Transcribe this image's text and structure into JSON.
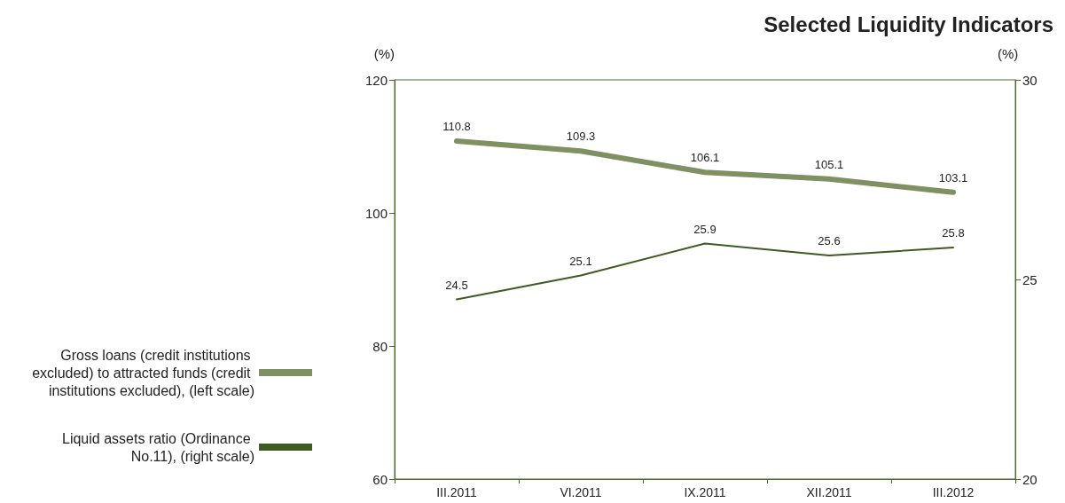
{
  "chart_data": {
    "type": "line",
    "title": "Selected Liquidity Indicators",
    "ylabel": "(%)",
    "y2label": "(%)",
    "categories": [
      "III.2011",
      "VI.2011",
      "IX.2011",
      "XII.2011",
      "III.2012"
    ],
    "series": [
      {
        "name": "Gross loans (credit institutions excluded) to attracted funds (credit institutions excluded), (left scale)",
        "color": "#7f9162",
        "values": [
          110.8,
          109.3,
          106.1,
          105.1,
          103.1
        ]
      },
      {
        "name": "Liquid assets ratio (Ordinance No.11), (right scale)",
        "color": "#3f5a22",
        "values": [
          24.5,
          25.1,
          25.9,
          25.6,
          25.8
        ],
        "axis": "y2"
      }
    ],
    "ylim": [
      60,
      120
    ],
    "yticks": [
      60,
      80,
      100,
      120
    ],
    "y2lim": [
      20,
      30
    ],
    "y2ticks": [
      20,
      25,
      30
    ],
    "data_labels": true,
    "grid": false,
    "legend": "left",
    "marker": "none",
    "line_style": "solid"
  }
}
